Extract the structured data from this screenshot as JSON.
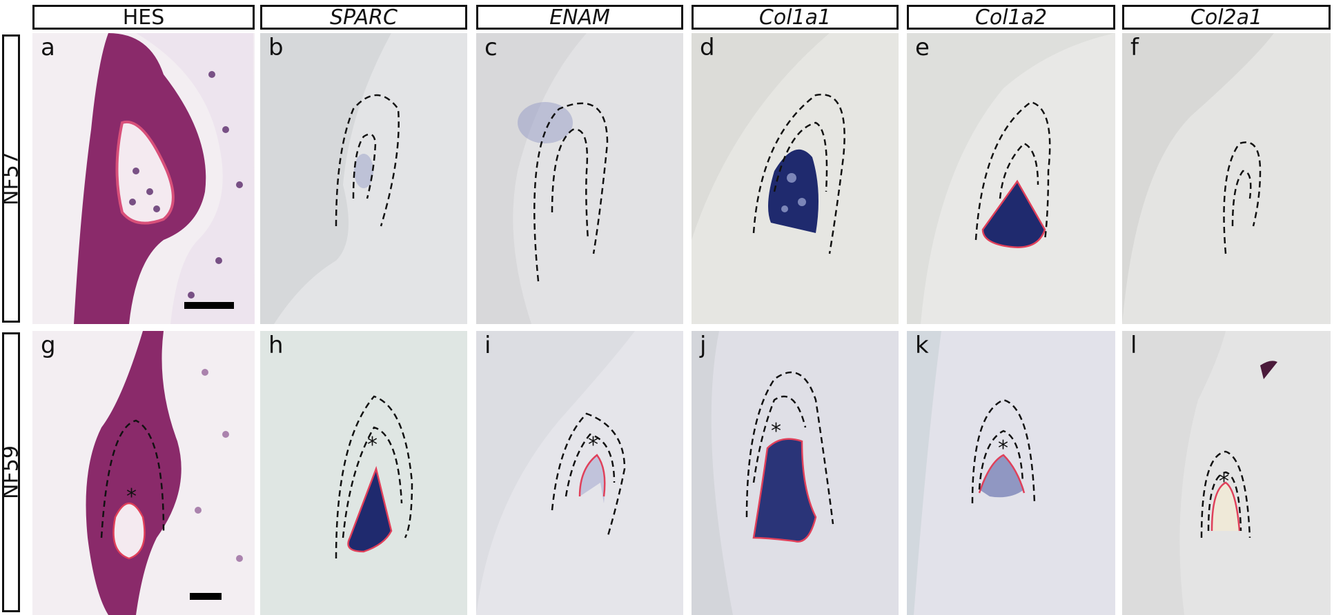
{
  "column_headers": [
    {
      "label": "HES",
      "italic": false
    },
    {
      "label": "SPARC",
      "italic": true
    },
    {
      "label": "ENAM",
      "italic": true
    },
    {
      "label": "Col1a1",
      "italic": true
    },
    {
      "label": "Col1a2",
      "italic": true
    },
    {
      "label": "Col2a1",
      "italic": true
    }
  ],
  "row_labels": [
    "NF57",
    "NF59"
  ],
  "panels": {
    "row1": [
      "a",
      "b",
      "c",
      "d",
      "e",
      "f"
    ],
    "row2": [
      "g",
      "h",
      "i",
      "j",
      "k",
      "l"
    ]
  },
  "annotations": {
    "asterisk": "*"
  },
  "colors": {
    "hes_tissue": "#8a2a6a",
    "ish_stain": "#1f2a6e",
    "outline_red": "#e0405a",
    "outline_dashed": "#111111"
  }
}
